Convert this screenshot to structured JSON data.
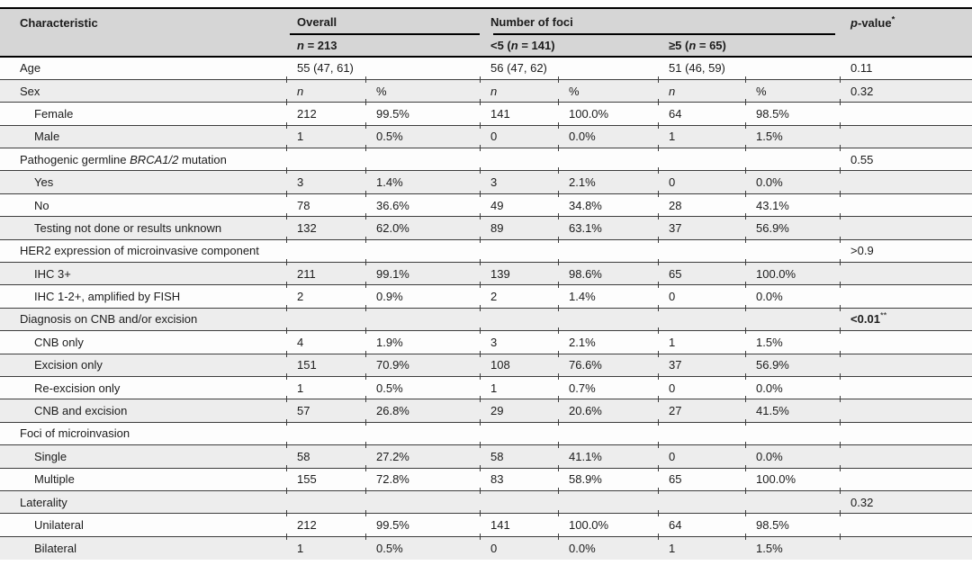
{
  "colors": {
    "header_bg": "#d6d6d6",
    "stripe_bg": "#ededed",
    "row_bg": "#fdfdfd",
    "rule_dark": "#000000",
    "rule_thin": "#3d3d3d",
    "text": "#1c1c1c"
  },
  "table": {
    "header": {
      "characteristic": "Characteristic",
      "overall": "Overall",
      "overall_n_it": "n",
      "overall_n_rest": " = 213",
      "foci": "Number of foci",
      "lt5_pre": "<5 (",
      "lt5_n_it": "n",
      "lt5_rest": " = 141)",
      "ge5_pre": "≥5 (",
      "ge5_n_it": "n",
      "ge5_rest": " = 65)",
      "p_italic": "p",
      "p_rest": "-value",
      "p_sup": "*"
    },
    "rows": [
      {
        "pre": "Age",
        "it": "",
        "post": "",
        "indent": false,
        "nitalic": false,
        "cells": [
          "55 (47, 61)",
          "",
          "56 (47, 62)",
          "",
          "51 (46, 59)",
          ""
        ],
        "p": "0.11",
        "psup": "",
        "pbold": false
      },
      {
        "pre": "Sex",
        "it": "",
        "post": "",
        "indent": false,
        "nitalic": true,
        "cells": [
          "n",
          "%",
          "n",
          "%",
          "n",
          "%"
        ],
        "p": "0.32",
        "psup": "",
        "pbold": false
      },
      {
        "pre": "Female",
        "it": "",
        "post": "",
        "indent": true,
        "nitalic": false,
        "cells": [
          "212",
          "99.5%",
          "141",
          "100.0%",
          "64",
          "98.5%"
        ],
        "p": "",
        "psup": "",
        "pbold": false
      },
      {
        "pre": "Male",
        "it": "",
        "post": "",
        "indent": true,
        "nitalic": false,
        "cells": [
          "1",
          "0.5%",
          "0",
          "0.0%",
          "1",
          "1.5%"
        ],
        "p": "",
        "psup": "",
        "pbold": false
      },
      {
        "pre": "Pathogenic germline ",
        "it": "BRCA1/2",
        "post": " mutation",
        "indent": false,
        "nitalic": false,
        "cells": [
          "",
          "",
          "",
          "",
          "",
          ""
        ],
        "p": "0.55",
        "psup": "",
        "pbold": false
      },
      {
        "pre": "Yes",
        "it": "",
        "post": "",
        "indent": true,
        "nitalic": false,
        "cells": [
          "3",
          "1.4%",
          "3",
          "2.1%",
          "0",
          "0.0%"
        ],
        "p": "",
        "psup": "",
        "pbold": false
      },
      {
        "pre": "No",
        "it": "",
        "post": "",
        "indent": true,
        "nitalic": false,
        "cells": [
          "78",
          "36.6%",
          "49",
          "34.8%",
          "28",
          "43.1%"
        ],
        "p": "",
        "psup": "",
        "pbold": false
      },
      {
        "pre": "Testing not done or results unknown",
        "it": "",
        "post": "",
        "indent": true,
        "nitalic": false,
        "cells": [
          "132",
          "62.0%",
          "89",
          "63.1%",
          "37",
          "56.9%"
        ],
        "p": "",
        "psup": "",
        "pbold": false
      },
      {
        "pre": "HER2 expression of microinvasive component",
        "it": "",
        "post": "",
        "indent": false,
        "nitalic": false,
        "cells": [
          "",
          "",
          "",
          "",
          "",
          ""
        ],
        "p": ">0.9",
        "psup": "",
        "pbold": false
      },
      {
        "pre": "IHC 3+",
        "it": "",
        "post": "",
        "indent": true,
        "nitalic": false,
        "cells": [
          "211",
          "99.1%",
          "139",
          "98.6%",
          "65",
          "100.0%"
        ],
        "p": "",
        "psup": "",
        "pbold": false
      },
      {
        "pre": "IHC 1-2+, amplified by FISH",
        "it": "",
        "post": "",
        "indent": true,
        "nitalic": false,
        "cells": [
          "2",
          "0.9%",
          "2",
          "1.4%",
          "0",
          "0.0%"
        ],
        "p": "",
        "psup": "",
        "pbold": false
      },
      {
        "pre": "Diagnosis on CNB and/or excision",
        "it": "",
        "post": "",
        "indent": false,
        "nitalic": false,
        "cells": [
          "",
          "",
          "",
          "",
          "",
          ""
        ],
        "p": "<0.01",
        "psup": "**",
        "pbold": true
      },
      {
        "pre": "CNB only",
        "it": "",
        "post": "",
        "indent": true,
        "nitalic": false,
        "cells": [
          "4",
          "1.9%",
          "3",
          "2.1%",
          "1",
          "1.5%"
        ],
        "p": "",
        "psup": "",
        "pbold": false
      },
      {
        "pre": "Excision only",
        "it": "",
        "post": "",
        "indent": true,
        "nitalic": false,
        "cells": [
          "151",
          "70.9%",
          "108",
          "76.6%",
          "37",
          "56.9%"
        ],
        "p": "",
        "psup": "",
        "pbold": false
      },
      {
        "pre": "Re-excision only",
        "it": "",
        "post": "",
        "indent": true,
        "nitalic": false,
        "cells": [
          "1",
          "0.5%",
          "1",
          "0.7%",
          "0",
          "0.0%"
        ],
        "p": "",
        "psup": "",
        "pbold": false
      },
      {
        "pre": "CNB and excision",
        "it": "",
        "post": "",
        "indent": true,
        "nitalic": false,
        "cells": [
          "57",
          "26.8%",
          "29",
          "20.6%",
          "27",
          "41.5%"
        ],
        "p": "",
        "psup": "",
        "pbold": false
      },
      {
        "pre": "Foci of microinvasion",
        "it": "",
        "post": "",
        "indent": false,
        "nitalic": false,
        "cells": [
          "",
          "",
          "",
          "",
          "",
          ""
        ],
        "p": "",
        "psup": "",
        "pbold": false
      },
      {
        "pre": "Single",
        "it": "",
        "post": "",
        "indent": true,
        "nitalic": false,
        "cells": [
          "58",
          "27.2%",
          "58",
          "41.1%",
          "0",
          "0.0%"
        ],
        "p": "",
        "psup": "",
        "pbold": false
      },
      {
        "pre": "Multiple",
        "it": "",
        "post": "",
        "indent": true,
        "nitalic": false,
        "cells": [
          "155",
          "72.8%",
          "83",
          "58.9%",
          "65",
          "100.0%"
        ],
        "p": "",
        "psup": "",
        "pbold": false
      },
      {
        "pre": "Laterality",
        "it": "",
        "post": "",
        "indent": false,
        "nitalic": false,
        "cells": [
          "",
          "",
          "",
          "",
          "",
          ""
        ],
        "p": "0.32",
        "psup": "",
        "pbold": false
      },
      {
        "pre": "Unilateral",
        "it": "",
        "post": "",
        "indent": true,
        "nitalic": false,
        "cells": [
          "212",
          "99.5%",
          "141",
          "100.0%",
          "64",
          "98.5%"
        ],
        "p": "",
        "psup": "",
        "pbold": false
      },
      {
        "pre": "Bilateral",
        "it": "",
        "post": "",
        "indent": true,
        "nitalic": false,
        "cells": [
          "1",
          "0.5%",
          "0",
          "0.0%",
          "1",
          "1.5%"
        ],
        "p": "",
        "psup": "",
        "pbold": false
      }
    ]
  }
}
